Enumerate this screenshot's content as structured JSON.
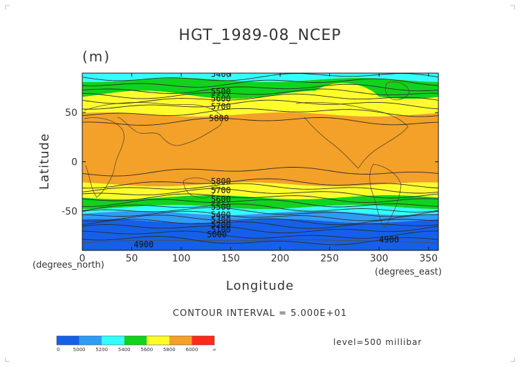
{
  "chart_data": {
    "type": "heatmap",
    "title": "HGT_1989-08_NCEP",
    "units": "(m)",
    "xlabel": "Longitude",
    "ylabel": "Latitude",
    "x_unit_label": "(degrees_east)",
    "y_unit_label": "(degrees_north)",
    "xlim": [
      0,
      360
    ],
    "ylim": [
      -90,
      90
    ],
    "x_ticks": [
      0,
      50,
      100,
      150,
      200,
      250,
      300,
      350
    ],
    "y_ticks": [
      -50,
      0,
      50
    ],
    "contour_interval_text": "CONTOUR INTERVAL = 5.000E+01",
    "level_text": "level=500 millibar",
    "contour_labels": [
      {
        "text": "5400",
        "lon": 130,
        "lat": 89
      },
      {
        "text": "5500",
        "lon": 130,
        "lat": 71
      },
      {
        "text": "5600",
        "lon": 130,
        "lat": 64
      },
      {
        "text": "5700",
        "lon": 130,
        "lat": 56
      },
      {
        "text": "5800",
        "lon": 128,
        "lat": 44
      },
      {
        "text": "5800",
        "lon": 130,
        "lat": -20
      },
      {
        "text": "5700",
        "lon": 130,
        "lat": -29
      },
      {
        "text": "5600",
        "lon": 130,
        "lat": -38
      },
      {
        "text": "5500",
        "lon": 130,
        "lat": -46
      },
      {
        "text": "5400",
        "lon": 130,
        "lat": -54
      },
      {
        "text": "5300",
        "lon": 130,
        "lat": -59
      },
      {
        "text": "5200",
        "lon": 130,
        "lat": -64
      },
      {
        "text": "5100",
        "lon": 130,
        "lat": -69
      },
      {
        "text": "5000",
        "lon": 126,
        "lat": -74
      },
      {
        "text": "4900",
        "lon": 52,
        "lat": -84
      },
      {
        "text": "4900",
        "lon": 300,
        "lat": -79
      }
    ],
    "colorbar": {
      "labels": [
        "0",
        "5000",
        "5200",
        "5400",
        "5600",
        "5800",
        "6000",
        "∞"
      ],
      "colors": [
        "#1560e8",
        "#2f9cf6",
        "#33ffff",
        "#11d21d",
        "#fffc2b",
        "#f3a128",
        "#ff2a1a"
      ]
    },
    "contour_bands_north_to_south": [
      {
        "lat_from": 90,
        "lat_to": 83,
        "color": "#33ffff"
      },
      {
        "lat_from": 83,
        "lat_to": 68,
        "color": "#11d21d"
      },
      {
        "lat_from": 68,
        "lat_to": 48,
        "color": "#fffc2b"
      },
      {
        "lat_from": 48,
        "lat_to": -23,
        "color": "#f3a128"
      },
      {
        "lat_from": -23,
        "lat_to": -36,
        "color": "#fffc2b"
      },
      {
        "lat_from": -36,
        "lat_to": -46,
        "color": "#11d21d"
      },
      {
        "lat_from": -46,
        "lat_to": -52,
        "color": "#33ffff"
      },
      {
        "lat_from": -52,
        "lat_to": -60,
        "color": "#2f9cf6"
      },
      {
        "lat_from": -60,
        "lat_to": -90,
        "color": "#1560e8"
      }
    ]
  }
}
